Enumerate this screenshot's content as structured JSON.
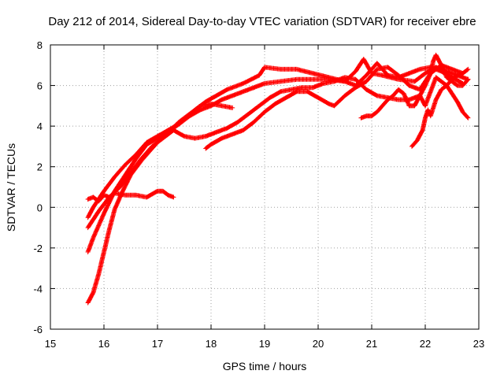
{
  "chart_data": {
    "type": "scatter",
    "title": "Day 212 of 2014, Sidereal Day-to-day VTEC variation (SDTVAR) for receiver ebre",
    "xlabel": "GPS time / hours",
    "ylabel": "SDTVAR / TECUs",
    "xlim": [
      15,
      23
    ],
    "ylim": [
      -6,
      8
    ],
    "xticks": [
      "15",
      "16",
      "17",
      "18",
      "19",
      "20",
      "21",
      "22",
      "23"
    ],
    "yticks": [
      "-6",
      "-4",
      "-2",
      "0",
      "2",
      "4",
      "6",
      "8"
    ],
    "grid": true,
    "marker": "+",
    "color": "#ff0000",
    "series": [
      {
        "name": "trace-1",
        "points": [
          [
            15.7,
            0.4
          ],
          [
            15.8,
            0.5
          ],
          [
            15.9,
            0.3
          ],
          [
            16.0,
            0.6
          ],
          [
            16.1,
            0.5
          ],
          [
            16.2,
            0.7
          ],
          [
            16.4,
            0.6
          ],
          [
            16.6,
            0.6
          ],
          [
            16.8,
            0.5
          ],
          [
            17.0,
            0.8
          ],
          [
            17.1,
            0.8
          ],
          [
            17.2,
            0.6
          ],
          [
            17.3,
            0.5
          ]
        ]
      },
      {
        "name": "trace-2",
        "points": [
          [
            15.7,
            -4.7
          ],
          [
            15.8,
            -4.2
          ],
          [
            15.9,
            -3.3
          ],
          [
            16.0,
            -2.2
          ],
          [
            16.1,
            -1.1
          ],
          [
            16.2,
            -0.1
          ],
          [
            16.35,
            0.8
          ],
          [
            16.5,
            1.6
          ],
          [
            16.7,
            2.3
          ],
          [
            16.9,
            2.9
          ],
          [
            17.1,
            3.5
          ],
          [
            17.3,
            3.9
          ],
          [
            17.5,
            4.3
          ],
          [
            17.7,
            4.8
          ],
          [
            17.9,
            5.2
          ],
          [
            18.1,
            5.5
          ],
          [
            18.3,
            5.8
          ],
          [
            18.6,
            6.1
          ],
          [
            18.9,
            6.5
          ],
          [
            19.0,
            6.9
          ],
          [
            19.3,
            6.8
          ],
          [
            19.6,
            6.8
          ],
          [
            19.9,
            6.6
          ],
          [
            20.2,
            6.4
          ],
          [
            20.5,
            6.2
          ],
          [
            20.7,
            6.7
          ],
          [
            20.85,
            7.3
          ],
          [
            21.0,
            6.6
          ],
          [
            21.2,
            6.5
          ],
          [
            21.5,
            6.3
          ],
          [
            21.8,
            6.2
          ],
          [
            22.0,
            6.6
          ],
          [
            22.2,
            6.9
          ],
          [
            22.4,
            6.7
          ],
          [
            22.6,
            6.5
          ],
          [
            22.8,
            6.3
          ]
        ]
      },
      {
        "name": "trace-3",
        "points": [
          [
            15.7,
            -2.2
          ],
          [
            15.8,
            -1.5
          ],
          [
            15.9,
            -0.9
          ],
          [
            16.0,
            -0.3
          ],
          [
            16.2,
            0.8
          ],
          [
            16.4,
            1.6
          ],
          [
            16.6,
            2.4
          ],
          [
            16.8,
            3.1
          ],
          [
            17.0,
            3.4
          ],
          [
            17.2,
            3.7
          ],
          [
            17.4,
            4.2
          ],
          [
            17.6,
            4.6
          ],
          [
            17.8,
            5.0
          ],
          [
            18.0,
            5.1
          ],
          [
            18.2,
            5.0
          ],
          [
            18.4,
            4.9
          ]
        ]
      },
      {
        "name": "trace-4",
        "points": [
          [
            15.7,
            -0.5
          ],
          [
            15.8,
            0.0
          ],
          [
            15.9,
            0.4
          ],
          [
            16.0,
            0.8
          ],
          [
            16.2,
            1.5
          ],
          [
            16.4,
            2.1
          ],
          [
            16.6,
            2.6
          ],
          [
            16.8,
            3.2
          ],
          [
            17.0,
            3.5
          ],
          [
            17.2,
            3.8
          ],
          [
            17.4,
            4.1
          ],
          [
            17.6,
            4.5
          ],
          [
            17.8,
            4.8
          ],
          [
            18.0,
            5.0
          ],
          [
            18.2,
            5.3
          ],
          [
            18.4,
            5.5
          ],
          [
            18.6,
            5.7
          ],
          [
            18.8,
            5.9
          ],
          [
            19.0,
            6.1
          ],
          [
            19.3,
            6.2
          ],
          [
            19.6,
            6.3
          ],
          [
            19.9,
            6.3
          ],
          [
            20.2,
            6.3
          ],
          [
            20.5,
            6.2
          ],
          [
            20.7,
            6.0
          ],
          [
            20.9,
            6.5
          ],
          [
            21.1,
            7.1
          ],
          [
            21.3,
            6.5
          ],
          [
            21.5,
            6.4
          ],
          [
            21.7,
            6.6
          ],
          [
            21.9,
            6.8
          ],
          [
            22.1,
            6.9
          ],
          [
            22.3,
            6.7
          ],
          [
            22.5,
            6.4
          ],
          [
            22.7,
            6.1
          ]
        ]
      },
      {
        "name": "trace-5",
        "points": [
          [
            15.7,
            -1.0
          ],
          [
            15.8,
            -0.6
          ],
          [
            15.9,
            -0.2
          ],
          [
            16.1,
            0.5
          ],
          [
            16.3,
            1.0
          ],
          [
            16.5,
            1.7
          ],
          [
            16.7,
            2.4
          ],
          [
            16.9,
            3.0
          ],
          [
            17.1,
            3.4
          ],
          [
            17.3,
            3.8
          ],
          [
            17.5,
            3.5
          ],
          [
            17.7,
            3.4
          ],
          [
            17.9,
            3.5
          ],
          [
            18.1,
            3.7
          ],
          [
            18.3,
            3.9
          ],
          [
            18.5,
            4.2
          ],
          [
            18.7,
            4.6
          ],
          [
            18.9,
            5.0
          ],
          [
            19.1,
            5.4
          ],
          [
            19.3,
            5.7
          ],
          [
            19.5,
            5.8
          ],
          [
            19.7,
            5.9
          ],
          [
            19.9,
            5.9
          ],
          [
            20.1,
            6.1
          ],
          [
            20.3,
            6.2
          ],
          [
            20.5,
            6.4
          ],
          [
            20.7,
            6.3
          ],
          [
            20.9,
            5.8
          ],
          [
            21.1,
            5.5
          ],
          [
            21.3,
            5.4
          ],
          [
            21.5,
            5.3
          ],
          [
            21.7,
            5.3
          ],
          [
            21.9,
            5.5
          ],
          [
            22.0,
            5.0
          ],
          [
            22.2,
            6.4
          ],
          [
            22.4,
            6.0
          ],
          [
            22.6,
            5.2
          ],
          [
            22.7,
            4.7
          ],
          [
            22.8,
            4.4
          ]
        ]
      },
      {
        "name": "trace-6",
        "points": [
          [
            17.9,
            2.9
          ],
          [
            18.0,
            3.1
          ],
          [
            18.2,
            3.4
          ],
          [
            18.4,
            3.6
          ],
          [
            18.6,
            3.8
          ],
          [
            18.8,
            4.2
          ],
          [
            19.0,
            4.7
          ],
          [
            19.2,
            5.1
          ],
          [
            19.4,
            5.4
          ],
          [
            19.6,
            5.7
          ],
          [
            19.8,
            5.7
          ],
          [
            20.0,
            5.4
          ],
          [
            20.2,
            5.1
          ],
          [
            20.3,
            5.0
          ],
          [
            20.5,
            5.5
          ],
          [
            20.7,
            5.9
          ],
          [
            20.9,
            6.2
          ],
          [
            21.1,
            6.8
          ],
          [
            21.3,
            6.9
          ],
          [
            21.5,
            6.5
          ],
          [
            21.7,
            6.0
          ],
          [
            21.9,
            5.8
          ],
          [
            22.1,
            6.6
          ],
          [
            22.3,
            7.0
          ],
          [
            22.5,
            6.8
          ],
          [
            22.7,
            6.6
          ],
          [
            22.8,
            6.8
          ]
        ]
      },
      {
        "name": "trace-7",
        "points": [
          [
            20.8,
            4.4
          ],
          [
            20.9,
            4.5
          ],
          [
            21.0,
            4.5
          ],
          [
            21.1,
            4.7
          ],
          [
            21.2,
            5.0
          ],
          [
            21.3,
            5.3
          ],
          [
            21.4,
            5.5
          ],
          [
            21.5,
            5.8
          ],
          [
            21.6,
            5.6
          ],
          [
            21.7,
            5.0
          ],
          [
            21.8,
            5.0
          ],
          [
            21.9,
            5.5
          ],
          [
            22.0,
            6.0
          ],
          [
            22.1,
            6.6
          ],
          [
            22.15,
            7.2
          ],
          [
            22.2,
            7.5
          ],
          [
            22.3,
            7.0
          ],
          [
            22.4,
            6.4
          ],
          [
            22.5,
            6.2
          ],
          [
            22.6,
            6.0
          ],
          [
            22.7,
            6.0
          ],
          [
            22.8,
            6.3
          ]
        ]
      },
      {
        "name": "trace-8",
        "points": [
          [
            21.75,
            3.0
          ],
          [
            21.85,
            3.3
          ],
          [
            21.95,
            3.8
          ],
          [
            22.0,
            4.4
          ],
          [
            22.05,
            4.8
          ],
          [
            22.1,
            4.5
          ],
          [
            22.2,
            5.3
          ],
          [
            22.3,
            5.8
          ],
          [
            22.4,
            6.0
          ],
          [
            22.5,
            6.3
          ],
          [
            22.6,
            6.5
          ],
          [
            22.7,
            6.6
          ]
        ]
      }
    ]
  }
}
